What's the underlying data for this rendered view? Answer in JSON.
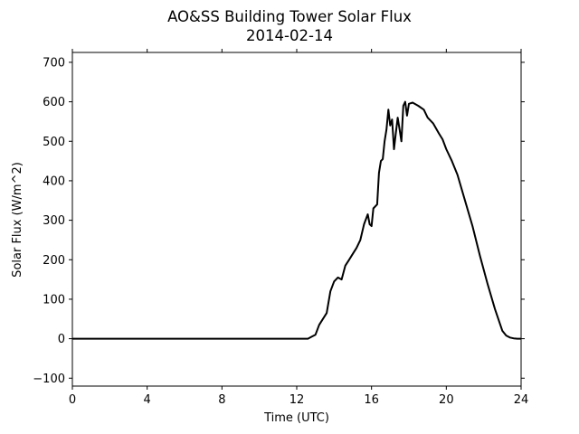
{
  "chart_data": {
    "type": "line",
    "title": "AO&SS Building Tower Solar Flux",
    "subtitle": "2014-02-14",
    "xlabel": "Time (UTC)",
    "ylabel": "Solar Flux (W/m^2)",
    "xlim": [
      0,
      24
    ],
    "ylim": [
      -120,
      725
    ],
    "xticks": [
      0,
      4,
      8,
      12,
      16,
      20,
      24
    ],
    "yticks": [
      -100,
      0,
      100,
      200,
      300,
      400,
      500,
      600,
      700
    ],
    "grid": false,
    "legend": "none",
    "series": [
      {
        "color": "#000000",
        "x": [
          0,
          12.6,
          12.8,
          13.0,
          13.2,
          13.4,
          13.6,
          13.8,
          14.0,
          14.2,
          14.4,
          14.6,
          14.8,
          15.0,
          15.2,
          15.4,
          15.6,
          15.8,
          15.9,
          16.0,
          16.1,
          16.3,
          16.4,
          16.5,
          16.6,
          16.7,
          16.8,
          16.9,
          17.0,
          17.1,
          17.2,
          17.3,
          17.4,
          17.5,
          17.6,
          17.7,
          17.8,
          17.9,
          18.0,
          18.2,
          18.5,
          18.8,
          19.0,
          19.3,
          19.6,
          19.8,
          20.0,
          20.3,
          20.6,
          21.0,
          21.4,
          21.8,
          22.2,
          22.6,
          23.0,
          23.2,
          23.4,
          23.6,
          23.8,
          24.0
        ],
        "y": [
          0,
          0,
          5,
          10,
          35,
          50,
          65,
          120,
          145,
          155,
          150,
          185,
          200,
          215,
          230,
          250,
          290,
          315,
          290,
          285,
          330,
          340,
          420,
          450,
          455,
          500,
          530,
          580,
          540,
          555,
          480,
          520,
          560,
          530,
          500,
          590,
          600,
          565,
          595,
          598,
          590,
          580,
          560,
          545,
          520,
          505,
          480,
          450,
          415,
          350,
          285,
          210,
          140,
          75,
          20,
          8,
          3,
          1,
          0,
          0
        ]
      }
    ]
  }
}
